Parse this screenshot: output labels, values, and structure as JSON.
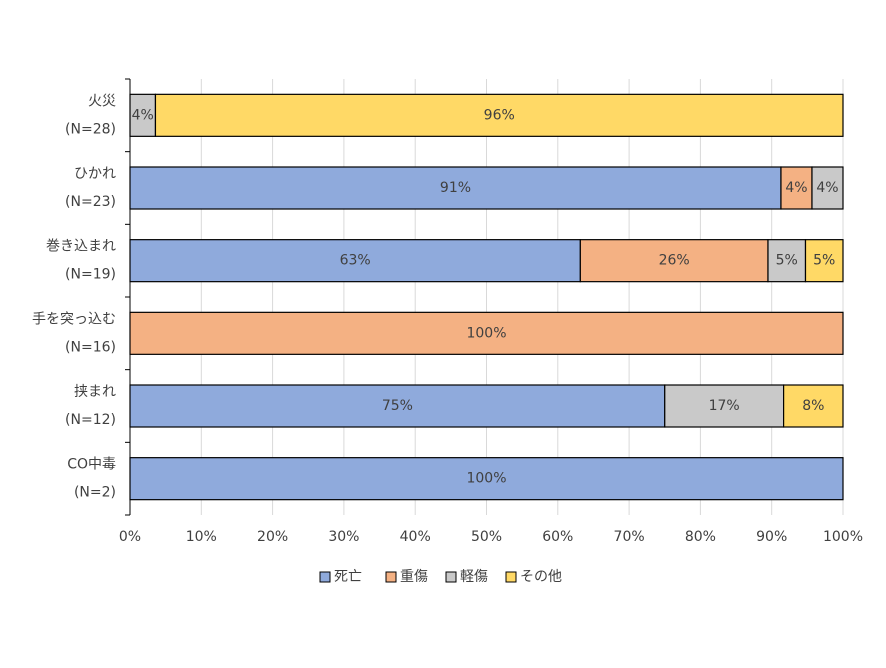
{
  "chart_data": {
    "type": "stacked-bar-horizontal",
    "categories": [
      [
        "火災",
        "(N=28)"
      ],
      [
        "ひかれ",
        "(N=23)"
      ],
      [
        "巻き込まれ",
        "(N=19)"
      ],
      [
        "手を突っ込む",
        "(N=16)"
      ],
      [
        "挟まれ",
        "(N=12)"
      ],
      [
        "CO中毒",
        "(N=2)"
      ]
    ],
    "series": [
      {
        "name": "死亡",
        "color": "#8faadc",
        "values": [
          null,
          91.3,
          63.16,
          null,
          75,
          100
        ],
        "value_labels": [
          null,
          "91%",
          "63%",
          null,
          "75%",
          "100%"
        ]
      },
      {
        "name": "重傷",
        "color": "#f4b183",
        "values": [
          null,
          4.35,
          26.32,
          100,
          null,
          null
        ],
        "value_labels": [
          null,
          "4%",
          "26%",
          "100%",
          null,
          null
        ]
      },
      {
        "name": "軽傷",
        "color": "#c9c9c9",
        "values": [
          3.57,
          4.35,
          5.26,
          null,
          16.67,
          null
        ],
        "value_labels": [
          "4%",
          "4%",
          "5%",
          null,
          "17%",
          null
        ]
      },
      {
        "name": "その他",
        "color": "#ffd966",
        "values": [
          96.43,
          null,
          5.26,
          null,
          8.33,
          null
        ],
        "value_labels": [
          "96%",
          null,
          "5%",
          null,
          "8%",
          null
        ]
      }
    ],
    "xlim": [
      0,
      100
    ],
    "xticks": [
      {
        "value": 0,
        "label": "0%"
      },
      {
        "value": 10,
        "label": "10%"
      },
      {
        "value": 20,
        "label": "20%"
      },
      {
        "value": 30,
        "label": "30%"
      },
      {
        "value": 40,
        "label": "40%"
      },
      {
        "value": 50,
        "label": "50%"
      },
      {
        "value": 60,
        "label": "60%"
      },
      {
        "value": 70,
        "label": "70%"
      },
      {
        "value": 80,
        "label": "80%"
      },
      {
        "value": 90,
        "label": "90%"
      },
      {
        "value": 100,
        "label": "100%"
      }
    ],
    "grid": true,
    "legend": "bottom"
  }
}
